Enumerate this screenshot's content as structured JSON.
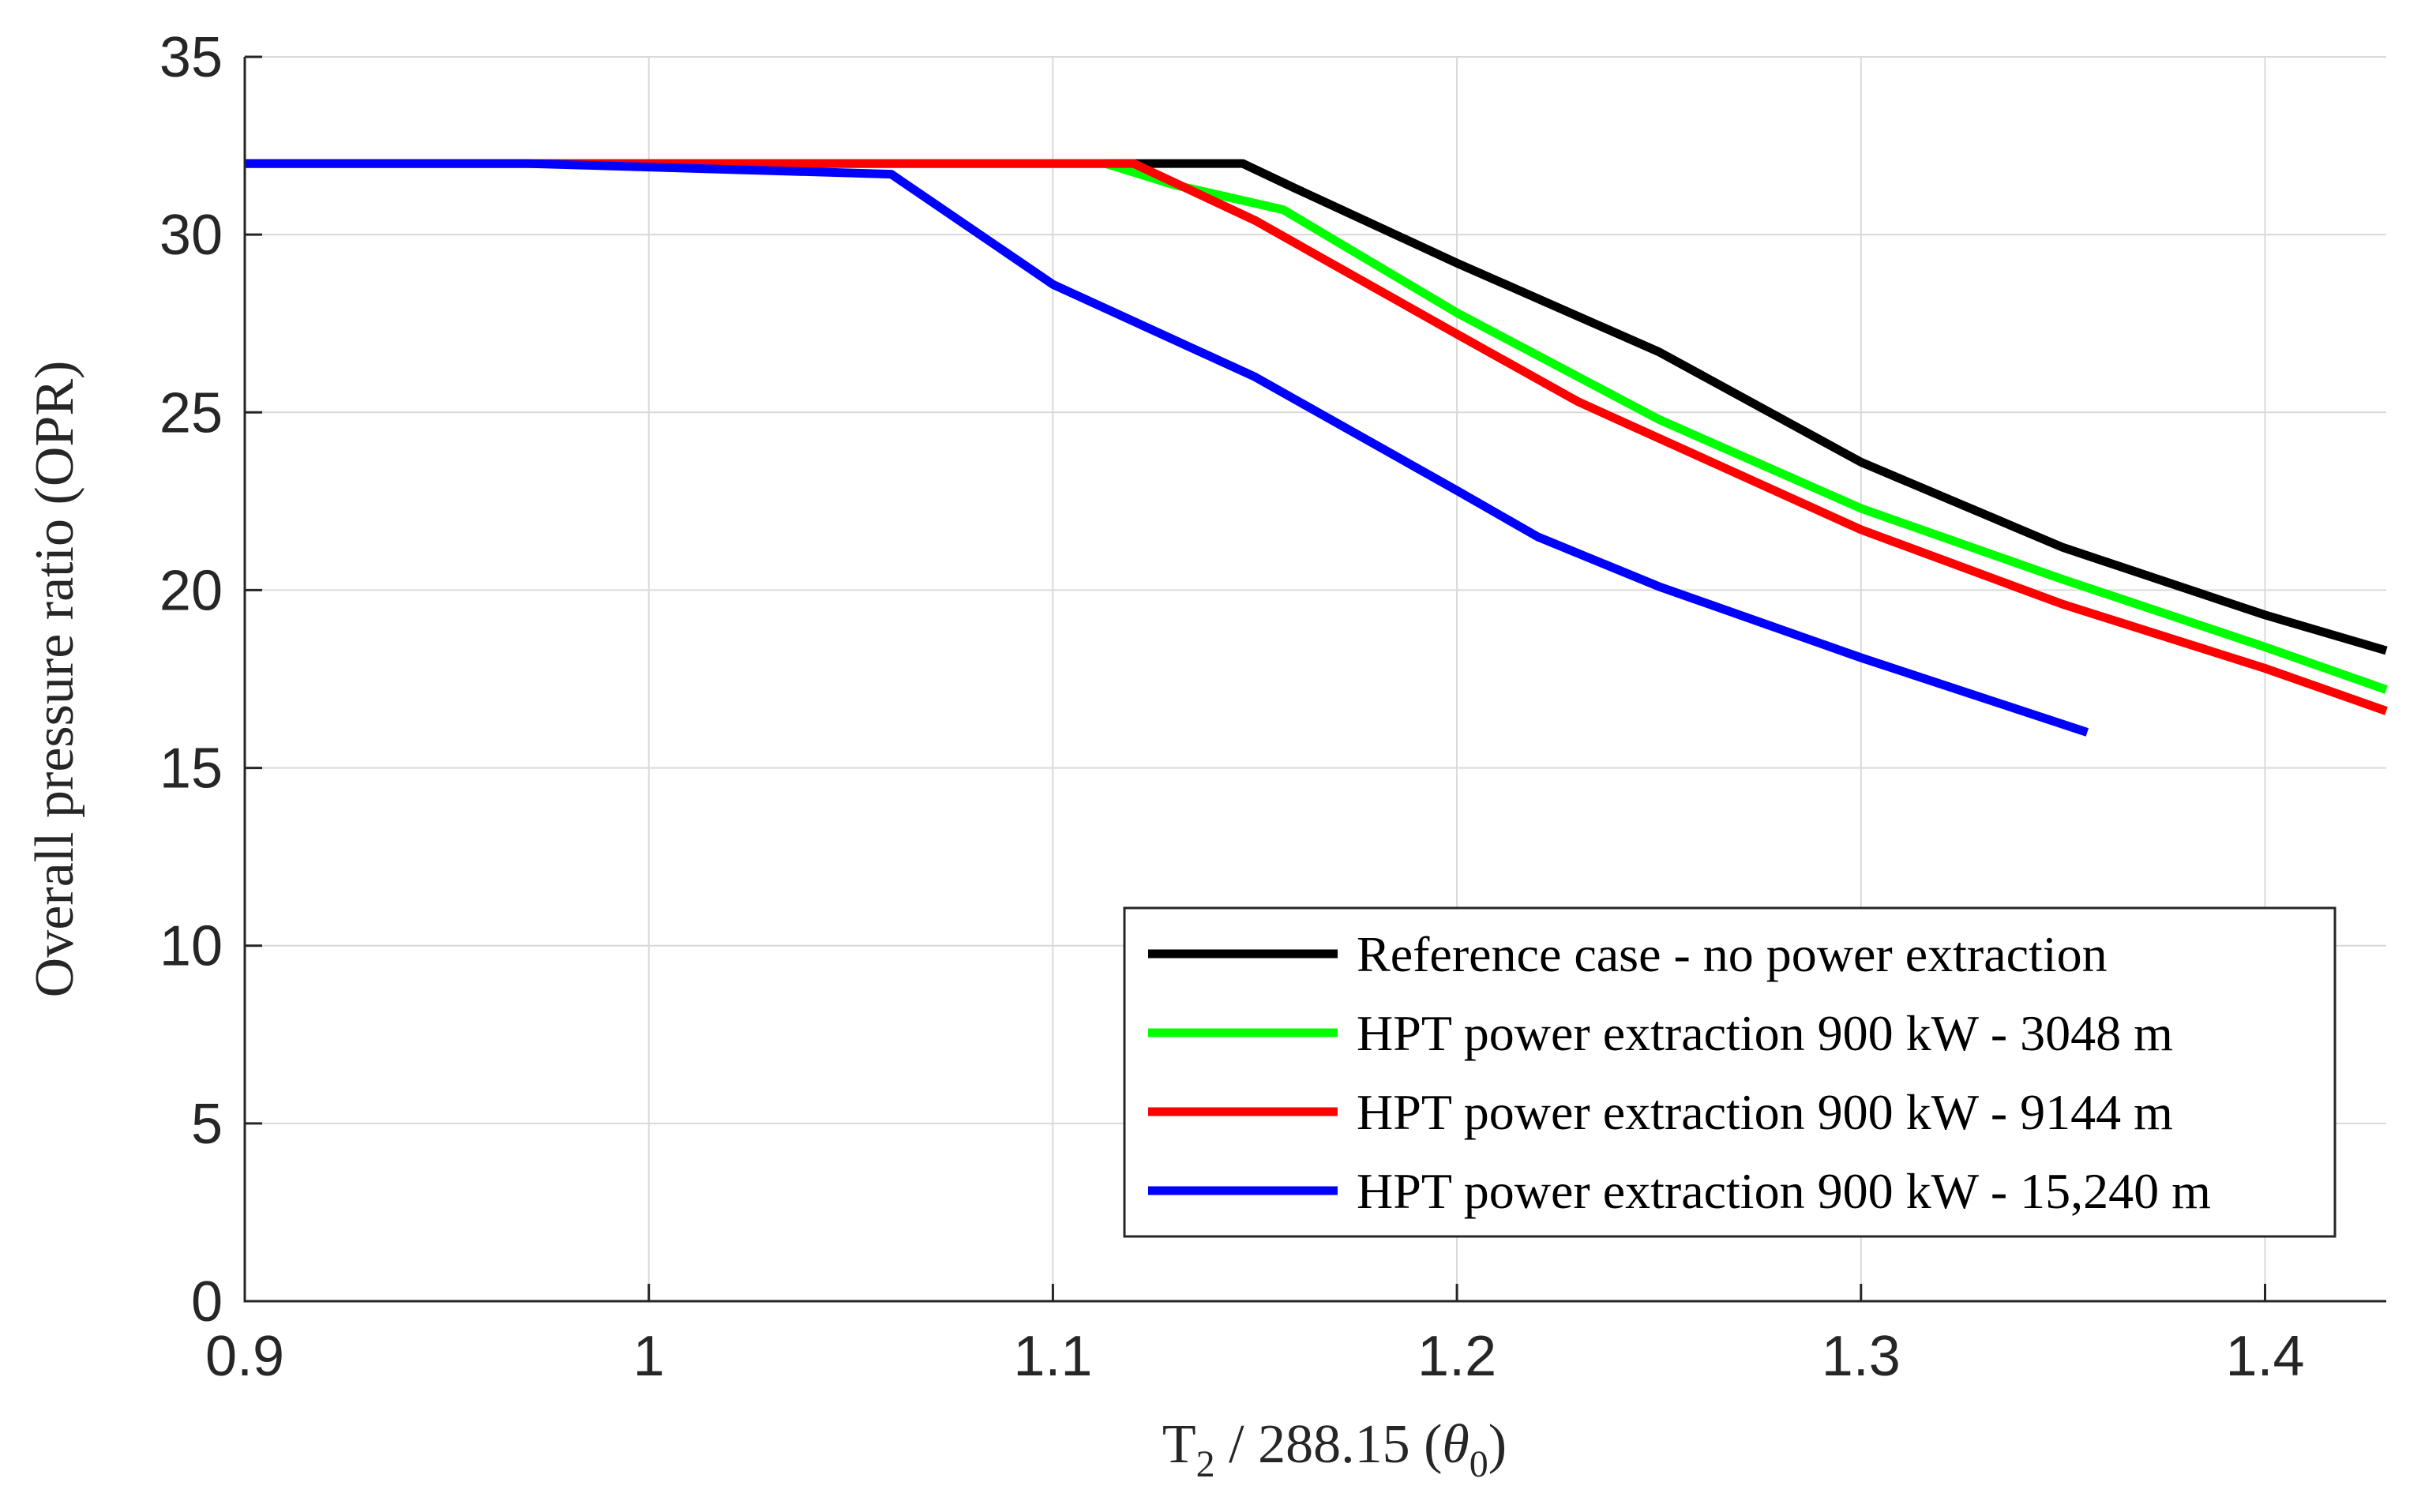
{
  "chart_data": {
    "type": "line",
    "title": "",
    "xlabel_main": "T",
    "xlabel_sub": "2",
    "xlabel_rest": " / 288.15 (",
    "xlabel_theta": "θ",
    "xlabel_theta_sub": "0",
    "xlabel_close": ")",
    "ylabel": "Overall pressure ratio (OPR)",
    "xlim": [
      0.9,
      1.43
    ],
    "ylim": [
      0,
      35
    ],
    "xticks": [
      0.9,
      1.0,
      1.1,
      1.2,
      1.3,
      1.4
    ],
    "xtick_labels": [
      "0.9",
      "1",
      "1.1",
      "1.2",
      "1.3",
      "1.4"
    ],
    "yticks": [
      0,
      5,
      10,
      15,
      20,
      25,
      30,
      35
    ],
    "ytick_labels": [
      "0",
      "5",
      "10",
      "15",
      "20",
      "25",
      "30",
      "35"
    ],
    "grid": true,
    "legend_position": "bottom-right",
    "series": [
      {
        "name": "Reference case - no power extraction",
        "color": "#000000",
        "x": [
          0.9,
          1.0,
          1.1,
          1.147,
          1.16,
          1.2,
          1.25,
          1.3,
          1.35,
          1.4,
          1.43
        ],
        "y": [
          32.0,
          32.0,
          32.0,
          32.0,
          31.3,
          29.2,
          26.7,
          23.6,
          21.2,
          19.3,
          18.3
        ]
      },
      {
        "name": "HPT power extraction 900 kW - 3048 m",
        "color": "#00ff00",
        "x": [
          0.9,
          1.0,
          1.1,
          1.113,
          1.13,
          1.157,
          1.2,
          1.25,
          1.3,
          1.35,
          1.4,
          1.43
        ],
        "y": [
          32.0,
          32.0,
          32.0,
          32.0,
          31.4,
          30.7,
          27.8,
          24.8,
          22.3,
          20.3,
          18.4,
          17.2
        ]
      },
      {
        "name": "HPT power extraction 900 kW - 9144 m",
        "color": "#ff0000",
        "x": [
          0.9,
          1.0,
          1.1,
          1.12,
          1.15,
          1.2,
          1.23,
          1.3,
          1.35,
          1.4,
          1.43
        ],
        "y": [
          32.0,
          32.0,
          32.0,
          32.0,
          30.4,
          27.2,
          25.3,
          21.7,
          19.6,
          17.8,
          16.6
        ]
      },
      {
        "name": "HPT power extraction 900 kW - 15,240 m",
        "color": "#0000ff",
        "x": [
          0.9,
          0.97,
          1.06,
          1.1,
          1.15,
          1.2,
          1.22,
          1.25,
          1.3,
          1.356
        ],
        "y": [
          32.0,
          32.0,
          31.7,
          28.6,
          26.0,
          22.8,
          21.5,
          20.1,
          18.1,
          16.0
        ]
      }
    ]
  }
}
